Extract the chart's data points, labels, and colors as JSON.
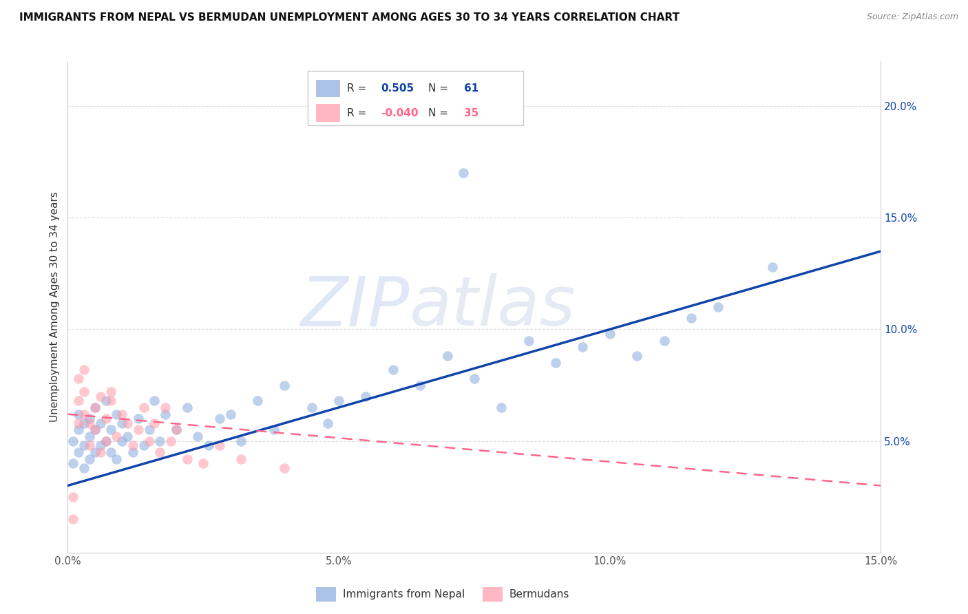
{
  "title": "IMMIGRANTS FROM NEPAL VS BERMUDAN UNEMPLOYMENT AMONG AGES 30 TO 34 YEARS CORRELATION CHART",
  "source": "Source: ZipAtlas.com",
  "ylabel": "Unemployment Among Ages 30 to 34 years",
  "xlim": [
    0.0,
    0.15
  ],
  "ylim": [
    0.0,
    0.22
  ],
  "xticks": [
    0.0,
    0.05,
    0.1,
    0.15
  ],
  "xtick_labels": [
    "0.0%",
    "5.0%",
    "10.0%",
    "15.0%"
  ],
  "yticks_right": [
    0.05,
    0.1,
    0.15,
    0.2
  ],
  "ytick_labels_right": [
    "5.0%",
    "10.0%",
    "15.0%",
    "20.0%"
  ],
  "blue_color": "#88AADD",
  "pink_color": "#FF99AA",
  "trend_blue_color": "#1144AA",
  "trend_pink_color": "#FF6688",
  "grid_color": "#DDDDDD",
  "legend_label_blue": "Immigrants from Nepal",
  "legend_label_pink": "Bermudans",
  "blue_x": [
    0.001,
    0.001,
    0.002,
    0.002,
    0.002,
    0.003,
    0.003,
    0.003,
    0.004,
    0.004,
    0.004,
    0.005,
    0.005,
    0.005,
    0.006,
    0.006,
    0.007,
    0.007,
    0.008,
    0.008,
    0.009,
    0.009,
    0.01,
    0.01,
    0.011,
    0.012,
    0.013,
    0.014,
    0.015,
    0.016,
    0.017,
    0.018,
    0.02,
    0.022,
    0.024,
    0.026,
    0.028,
    0.03,
    0.032,
    0.035,
    0.038,
    0.04,
    0.045,
    0.048,
    0.05,
    0.055,
    0.06,
    0.065,
    0.07,
    0.075,
    0.08,
    0.085,
    0.09,
    0.095,
    0.1,
    0.105,
    0.11,
    0.115,
    0.12,
    0.073,
    0.13
  ],
  "blue_y": [
    0.05,
    0.04,
    0.055,
    0.045,
    0.062,
    0.048,
    0.058,
    0.038,
    0.052,
    0.042,
    0.06,
    0.055,
    0.045,
    0.065,
    0.048,
    0.058,
    0.05,
    0.068,
    0.045,
    0.055,
    0.042,
    0.062,
    0.05,
    0.058,
    0.052,
    0.045,
    0.06,
    0.048,
    0.055,
    0.068,
    0.05,
    0.062,
    0.055,
    0.065,
    0.052,
    0.048,
    0.06,
    0.062,
    0.05,
    0.068,
    0.055,
    0.075,
    0.065,
    0.058,
    0.068,
    0.07,
    0.082,
    0.075,
    0.088,
    0.078,
    0.065,
    0.095,
    0.085,
    0.092,
    0.098,
    0.088,
    0.095,
    0.105,
    0.11,
    0.17,
    0.128
  ],
  "pink_x": [
    0.001,
    0.001,
    0.002,
    0.002,
    0.002,
    0.003,
    0.003,
    0.003,
    0.004,
    0.004,
    0.005,
    0.005,
    0.006,
    0.006,
    0.007,
    0.007,
    0.008,
    0.008,
    0.009,
    0.01,
    0.011,
    0.012,
    0.013,
    0.014,
    0.015,
    0.016,
    0.017,
    0.018,
    0.019,
    0.02,
    0.022,
    0.025,
    0.028,
    0.032,
    0.04
  ],
  "pink_y": [
    0.025,
    0.015,
    0.058,
    0.068,
    0.078,
    0.062,
    0.072,
    0.082,
    0.058,
    0.048,
    0.065,
    0.055,
    0.07,
    0.045,
    0.06,
    0.05,
    0.068,
    0.072,
    0.052,
    0.062,
    0.058,
    0.048,
    0.055,
    0.065,
    0.05,
    0.058,
    0.045,
    0.065,
    0.05,
    0.055,
    0.042,
    0.04,
    0.048,
    0.042,
    0.038
  ],
  "blue_trend_x": [
    0.0,
    0.15
  ],
  "blue_trend_y": [
    0.03,
    0.135
  ],
  "pink_trend_x": [
    0.0,
    0.15
  ],
  "pink_trend_y": [
    0.062,
    0.03
  ]
}
